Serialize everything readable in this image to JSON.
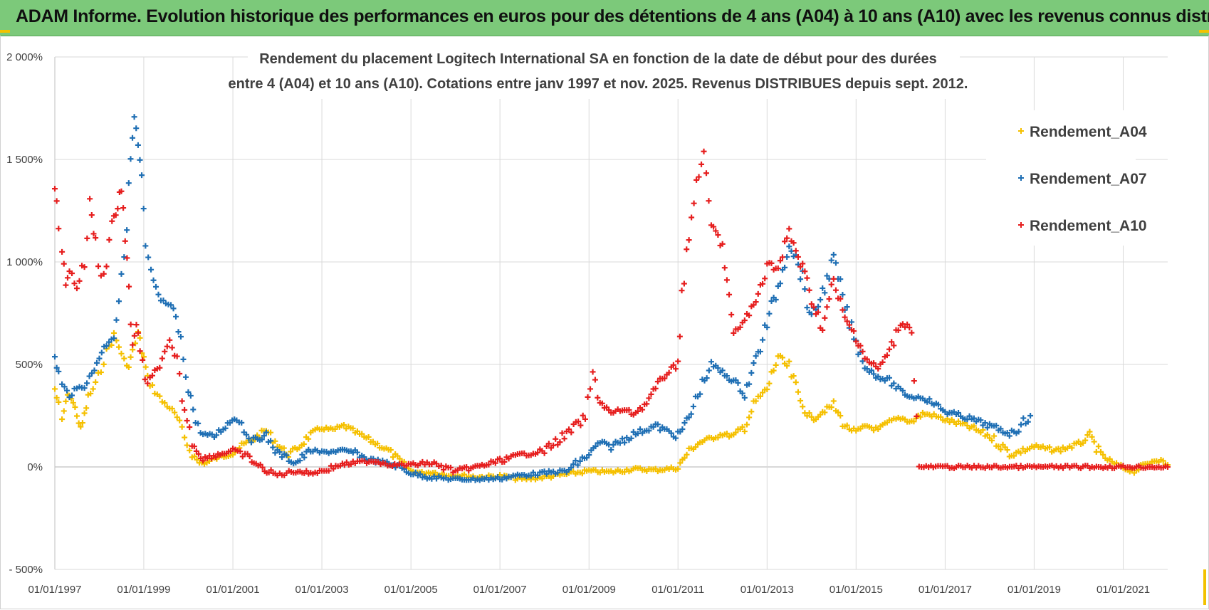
{
  "banner": {
    "title": "ADAM Informe. Evolution historique des performances en euros pour des détentions de 4 ans (A04) à 10 ans (A10) avec les revenus connus distribués",
    "background_color": "#7cc97a"
  },
  "chart_data": {
    "type": "scatter",
    "title_lines": [
      "Rendement du placement Logitech International SA en fonction de la date de début pour des durées",
      "entre 4 (A04) et 10 ans (A10).  Cotations entre janv 1997 et nov. 2025. Revenus DISTRIBUES depuis sept. 2012."
    ],
    "xlabel": "",
    "ylabel": "",
    "xlim": [
      "1997-01-01",
      "2022-01-01"
    ],
    "ylim": [
      -500,
      2000
    ],
    "x_tick_labels": [
      "01/01/1997",
      "01/01/1999",
      "01/01/2001",
      "01/01/2003",
      "01/01/2005",
      "01/01/2007",
      "01/01/2009",
      "01/01/2011",
      "01/01/2013",
      "01/01/2015",
      "01/01/2017",
      "01/01/2019",
      "01/01/2021"
    ],
    "y_tick_values": [
      -500,
      0,
      500,
      1000,
      1500,
      2000
    ],
    "y_tick_labels": [
      "- 500%",
      "0%",
      "500%",
      "1 000%",
      "1 500%",
      "2 000%"
    ],
    "grid": true,
    "marker": "+",
    "legend_position": "right",
    "series": [
      {
        "name": "Rendement_A04",
        "color": "#f5c000",
        "points": [
          [
            "1997-01-01",
            380
          ],
          [
            "1997-02-01",
            300
          ],
          [
            "1997-03-01",
            220
          ],
          [
            "1997-04-01",
            320
          ],
          [
            "1997-05-01",
            360
          ],
          [
            "1997-06-01",
            310
          ],
          [
            "1997-07-01",
            260
          ],
          [
            "1997-08-01",
            180
          ],
          [
            "1997-09-01",
            250
          ],
          [
            "1997-10-01",
            340
          ],
          [
            "1997-12-01",
            400
          ],
          [
            "1998-01-15",
            480
          ],
          [
            "1998-03-01",
            560
          ],
          [
            "1998-05-01",
            640
          ],
          [
            "1998-07-01",
            560
          ],
          [
            "1998-08-15",
            480
          ],
          [
            "1998-10-01",
            560
          ],
          [
            "1998-11-15",
            650
          ],
          [
            "1999-01-01",
            530
          ],
          [
            "1999-02-01",
            430
          ],
          [
            "1999-04-01",
            370
          ],
          [
            "1999-06-01",
            320
          ],
          [
            "1999-08-01",
            290
          ],
          [
            "1999-10-01",
            240
          ],
          [
            "1999-12-01",
            140
          ],
          [
            "2000-02-01",
            60
          ],
          [
            "2000-04-01",
            20
          ],
          [
            "2000-06-01",
            20
          ],
          [
            "2000-08-01",
            40
          ],
          [
            "2000-10-01",
            50
          ],
          [
            "2001-01-01",
            70
          ],
          [
            "2001-04-01",
            110
          ],
          [
            "2001-07-01",
            140
          ],
          [
            "2001-10-01",
            180
          ],
          [
            "2002-01-01",
            110
          ],
          [
            "2002-04-01",
            60
          ],
          [
            "2002-07-01",
            100
          ],
          [
            "2002-10-01",
            160
          ],
          [
            "2003-01-01",
            190
          ],
          [
            "2003-04-01",
            180
          ],
          [
            "2003-07-01",
            200
          ],
          [
            "2003-10-01",
            170
          ],
          [
            "2004-01-01",
            140
          ],
          [
            "2004-04-01",
            110
          ],
          [
            "2004-07-01",
            80
          ],
          [
            "2004-10-01",
            30
          ],
          [
            "2005-01-01",
            -20
          ],
          [
            "2005-04-01",
            -30
          ],
          [
            "2005-07-01",
            -25
          ],
          [
            "2005-10-01",
            -40
          ],
          [
            "2006-01-01",
            -40
          ],
          [
            "2006-07-01",
            -50
          ],
          [
            "2007-01-01",
            -45
          ],
          [
            "2007-07-01",
            -60
          ],
          [
            "2008-01-01",
            -50
          ],
          [
            "2008-07-01",
            -35
          ],
          [
            "2009-01-01",
            -20
          ],
          [
            "2009-07-01",
            -25
          ],
          [
            "2010-01-01",
            -10
          ],
          [
            "2010-07-01",
            -15
          ],
          [
            "2011-01-01",
            -5
          ],
          [
            "2011-04-01",
            80
          ],
          [
            "2011-07-01",
            120
          ],
          [
            "2011-10-01",
            140
          ],
          [
            "2012-01-01",
            160
          ],
          [
            "2012-04-01",
            150
          ],
          [
            "2012-07-01",
            200
          ],
          [
            "2012-10-01",
            320
          ],
          [
            "2013-01-01",
            380
          ],
          [
            "2013-04-01",
            540
          ],
          [
            "2013-07-01",
            480
          ],
          [
            "2013-10-01",
            320
          ],
          [
            "2014-01-01",
            230
          ],
          [
            "2014-04-01",
            270
          ],
          [
            "2014-07-01",
            300
          ],
          [
            "2014-10-01",
            200
          ],
          [
            "2015-01-01",
            170
          ],
          [
            "2015-04-01",
            200
          ],
          [
            "2015-07-01",
            180
          ],
          [
            "2015-10-01",
            220
          ],
          [
            "2016-01-01",
            240
          ],
          [
            "2016-04-01",
            220
          ],
          [
            "2016-07-01",
            260
          ],
          [
            "2016-10-01",
            250
          ],
          [
            "2017-01-01",
            230
          ],
          [
            "2017-07-01",
            200
          ],
          [
            "2018-01-01",
            150
          ],
          [
            "2018-07-01",
            60
          ],
          [
            "2019-01-01",
            100
          ],
          [
            "2019-07-01",
            80
          ],
          [
            "2020-01-01",
            110
          ],
          [
            "2020-04-01",
            150
          ],
          [
            "2020-07-01",
            60
          ],
          [
            "2020-10-01",
            20
          ],
          [
            "2021-01-01",
            -5
          ],
          [
            "2021-04-01",
            -20
          ],
          [
            "2021-07-01",
            10
          ],
          [
            "2021-10-01",
            40
          ],
          [
            "2022-01-01",
            10
          ]
        ]
      },
      {
        "name": "Rendement_A07",
        "color": "#1f6fb4",
        "points": [
          [
            "1997-01-01",
            530
          ],
          [
            "1997-02-01",
            460
          ],
          [
            "1997-03-01",
            400
          ],
          [
            "1997-05-01",
            350
          ],
          [
            "1997-07-01",
            380
          ],
          [
            "1997-09-01",
            400
          ],
          [
            "1997-11-01",
            450
          ],
          [
            "1998-01-01",
            540
          ],
          [
            "1998-03-01",
            600
          ],
          [
            "1998-05-01",
            650
          ],
          [
            "1998-07-01",
            900
          ],
          [
            "1998-08-15",
            1200
          ],
          [
            "1998-09-15",
            1500
          ],
          [
            "1998-10-15",
            1700
          ],
          [
            "1998-11-15",
            1560
          ],
          [
            "1998-12-15",
            1400
          ],
          [
            "1999-01-15",
            1060
          ],
          [
            "1999-03-01",
            950
          ],
          [
            "1999-05-01",
            830
          ],
          [
            "1999-07-01",
            790
          ],
          [
            "1999-09-01",
            780
          ],
          [
            "1999-11-01",
            600
          ],
          [
            "2000-01-01",
            400
          ],
          [
            "2000-03-01",
            220
          ],
          [
            "2000-05-01",
            160
          ],
          [
            "2000-08-01",
            150
          ],
          [
            "2000-11-01",
            200
          ],
          [
            "2001-02-01",
            250
          ],
          [
            "2001-06-01",
            130
          ],
          [
            "2001-10-01",
            150
          ],
          [
            "2002-01-01",
            70
          ],
          [
            "2002-06-01",
            20
          ],
          [
            "2002-10-01",
            80
          ],
          [
            "2003-01-01",
            70
          ],
          [
            "2003-06-01",
            80
          ],
          [
            "2003-10-01",
            70
          ],
          [
            "2004-01-01",
            40
          ],
          [
            "2004-06-01",
            20
          ],
          [
            "2004-10-01",
            0
          ],
          [
            "2005-01-01",
            -30
          ],
          [
            "2005-06-01",
            -50
          ],
          [
            "2006-01-01",
            -60
          ],
          [
            "2006-07-01",
            -60
          ],
          [
            "2007-01-01",
            -55
          ],
          [
            "2007-07-01",
            -40
          ],
          [
            "2008-01-01",
            -30
          ],
          [
            "2008-07-01",
            -20
          ],
          [
            "2009-01-01",
            60
          ],
          [
            "2009-04-01",
            120
          ],
          [
            "2009-07-01",
            100
          ],
          [
            "2010-01-01",
            160
          ],
          [
            "2010-07-01",
            200
          ],
          [
            "2011-01-01",
            150
          ],
          [
            "2011-04-01",
            240
          ],
          [
            "2011-07-01",
            380
          ],
          [
            "2011-10-01",
            500
          ],
          [
            "2012-01-01",
            460
          ],
          [
            "2012-04-01",
            420
          ],
          [
            "2012-07-01",
            360
          ],
          [
            "2012-10-01",
            520
          ],
          [
            "2013-01-01",
            700
          ],
          [
            "2013-04-01",
            880
          ],
          [
            "2013-07-01",
            1100
          ],
          [
            "2013-10-01",
            960
          ],
          [
            "2014-01-01",
            720
          ],
          [
            "2014-04-01",
            850
          ],
          [
            "2014-07-01",
            1010
          ],
          [
            "2014-10-01",
            780
          ],
          [
            "2015-01-01",
            600
          ],
          [
            "2015-04-01",
            480
          ],
          [
            "2015-07-01",
            440
          ],
          [
            "2015-10-01",
            420
          ],
          [
            "2016-01-01",
            370
          ],
          [
            "2016-04-01",
            340
          ],
          [
            "2016-07-01",
            340
          ],
          [
            "2016-10-01",
            310
          ],
          [
            "2017-01-01",
            270
          ],
          [
            "2017-07-01",
            240
          ],
          [
            "2018-01-01",
            200
          ],
          [
            "2018-07-01",
            160
          ],
          [
            "2018-12-01",
            250
          ]
        ]
      },
      {
        "name": "Rendement_A10",
        "color": "#e61e1e",
        "points": [
          [
            "1997-01-01",
            1380
          ],
          [
            "1997-02-01",
            1150
          ],
          [
            "1997-03-01",
            1050
          ],
          [
            "1997-04-01",
            900
          ],
          [
            "1997-05-01",
            960
          ],
          [
            "1997-07-01",
            880
          ],
          [
            "1997-09-01",
            1000
          ],
          [
            "1997-10-15",
            1280
          ],
          [
            "1997-12-01",
            1100
          ],
          [
            "1998-01-15",
            920
          ],
          [
            "1998-03-01",
            1000
          ],
          [
            "1998-04-15",
            1200
          ],
          [
            "1998-06-01",
            1260
          ],
          [
            "1998-07-01",
            1380
          ],
          [
            "1998-08-01",
            1100
          ],
          [
            "1998-09-01",
            850
          ],
          [
            "1998-10-01",
            600
          ],
          [
            "1998-11-01",
            700
          ],
          [
            "1998-12-01",
            550
          ],
          [
            "1999-02-01",
            400
          ],
          [
            "1999-04-01",
            460
          ],
          [
            "1999-06-01",
            520
          ],
          [
            "1999-08-01",
            600
          ],
          [
            "1999-10-01",
            500
          ],
          [
            "1999-12-01",
            280
          ],
          [
            "2000-02-01",
            120
          ],
          [
            "2000-05-01",
            40
          ],
          [
            "2000-09-01",
            60
          ],
          [
            "2001-01-01",
            80
          ],
          [
            "2001-05-01",
            50
          ],
          [
            "2001-09-01",
            -10
          ],
          [
            "2002-01-01",
            -40
          ],
          [
            "2002-06-01",
            -20
          ],
          [
            "2002-10-01",
            -30
          ],
          [
            "2003-01-01",
            -20
          ],
          [
            "2003-06-01",
            10
          ],
          [
            "2003-10-01",
            20
          ],
          [
            "2004-03-01",
            30
          ],
          [
            "2004-08-01",
            10
          ],
          [
            "2005-01-01",
            10
          ],
          [
            "2005-06-01",
            20
          ],
          [
            "2006-01-01",
            -20
          ],
          [
            "2006-07-01",
            0
          ],
          [
            "2007-01-01",
            30
          ],
          [
            "2007-07-01",
            60
          ],
          [
            "2008-01-01",
            80
          ],
          [
            "2008-07-01",
            160
          ],
          [
            "2008-12-01",
            240
          ],
          [
            "2009-02-01",
            450
          ],
          [
            "2009-04-01",
            320
          ],
          [
            "2009-07-01",
            260
          ],
          [
            "2009-10-01",
            280
          ],
          [
            "2010-01-01",
            260
          ],
          [
            "2010-04-01",
            300
          ],
          [
            "2010-07-01",
            380
          ],
          [
            "2010-10-01",
            460
          ],
          [
            "2011-01-01",
            500
          ],
          [
            "2011-02-01",
            850
          ],
          [
            "2011-04-01",
            1100
          ],
          [
            "2011-06-01",
            1400
          ],
          [
            "2011-08-01",
            1500
          ],
          [
            "2011-10-01",
            1180
          ],
          [
            "2012-01-01",
            1080
          ],
          [
            "2012-04-01",
            640
          ],
          [
            "2012-07-01",
            720
          ],
          [
            "2012-10-01",
            800
          ],
          [
            "2013-01-01",
            1000
          ],
          [
            "2013-04-01",
            960
          ],
          [
            "2013-07-01",
            1140
          ],
          [
            "2013-10-01",
            1000
          ],
          [
            "2014-01-01",
            820
          ],
          [
            "2014-04-01",
            680
          ],
          [
            "2014-07-01",
            900
          ],
          [
            "2014-10-01",
            720
          ],
          [
            "2015-01-01",
            640
          ],
          [
            "2015-04-01",
            520
          ],
          [
            "2015-07-01",
            480
          ],
          [
            "2015-10-01",
            560
          ],
          [
            "2016-01-01",
            700
          ],
          [
            "2016-04-01",
            680
          ],
          [
            "2016-06-01",
            0
          ],
          [
            "2017-01-01",
            0
          ],
          [
            "2018-01-01",
            0
          ],
          [
            "2019-01-01",
            0
          ],
          [
            "2020-01-01",
            0
          ],
          [
            "2021-01-01",
            0
          ],
          [
            "2022-01-01",
            0
          ]
        ]
      }
    ]
  }
}
